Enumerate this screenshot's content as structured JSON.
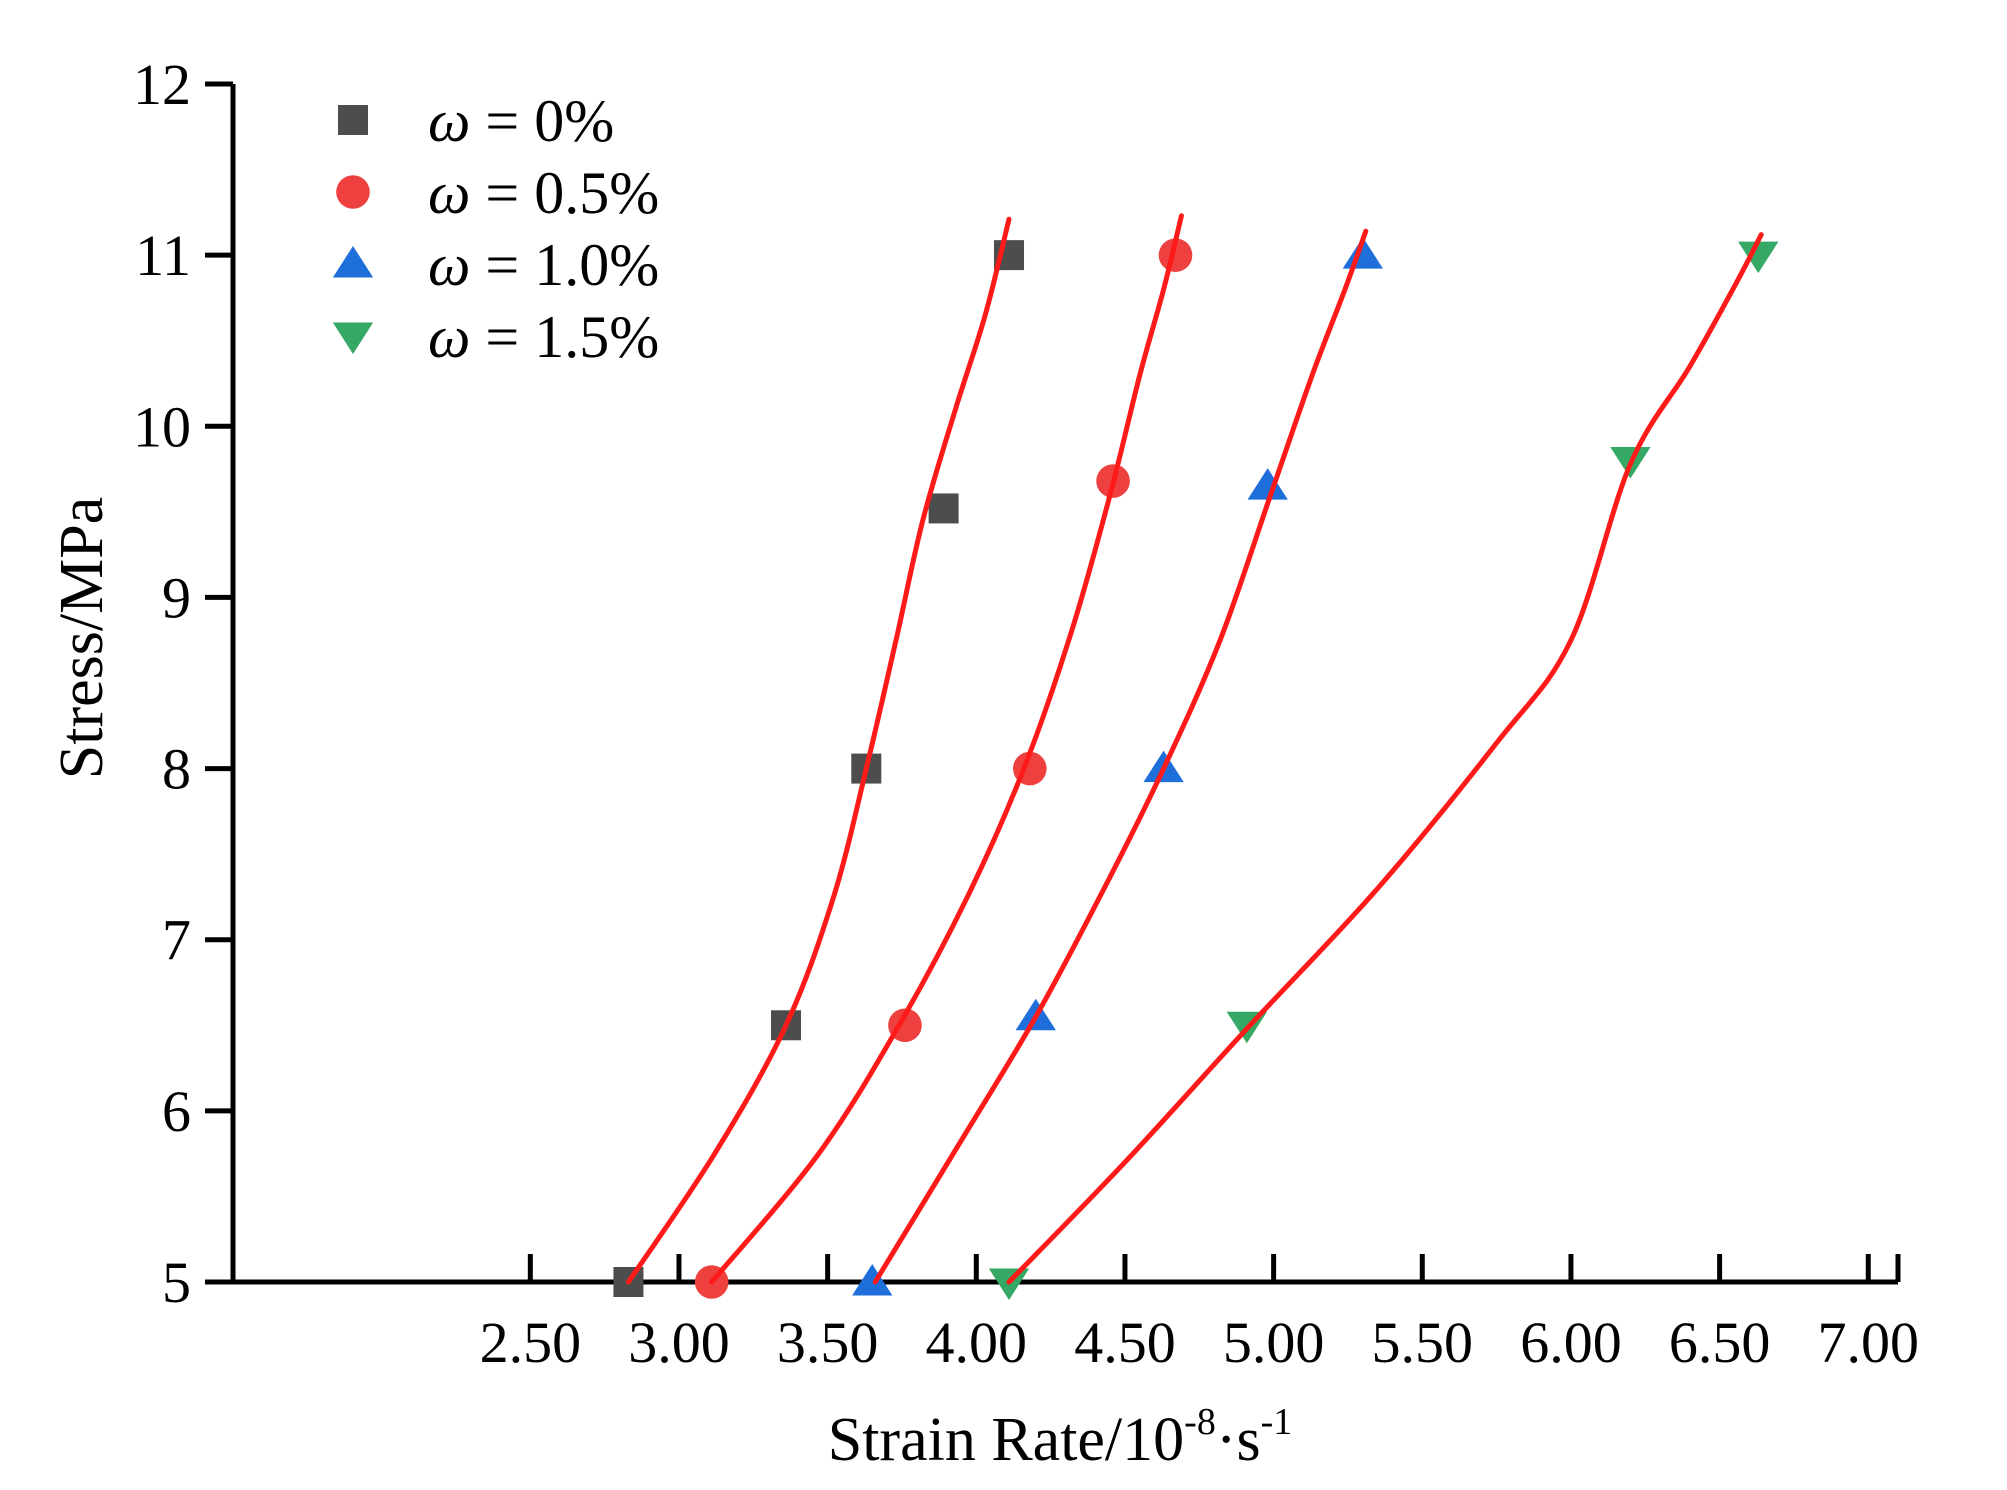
{
  "chart_data": {
    "type": "scatter",
    "xlabel": "Strain Rate/10",
    "xlabel_sup1": "-8",
    "xlabel_mid": "·s",
    "xlabel_sup2": "-1",
    "ylabel": "Stress/MPa",
    "xlim": [
      1.5,
      7.1
    ],
    "ylim": [
      5,
      12
    ],
    "x_tick_values": [
      2.5,
      3.0,
      3.5,
      4.0,
      4.5,
      5.0,
      5.5,
      6.0,
      6.5,
      7.0
    ],
    "x_tick_labels": [
      "2.50",
      "3.00",
      "3.50",
      "4.00",
      "4.50",
      "5.00",
      "5.50",
      "6.00",
      "6.50",
      "7.00"
    ],
    "y_tick_values": [
      5,
      6,
      7,
      8,
      9,
      10,
      11,
      12
    ],
    "y_tick_labels": [
      "5",
      "6",
      "7",
      "8",
      "9",
      "10",
      "11",
      "12"
    ],
    "legend_position": "top-left",
    "fit_color": "#ff1a1a",
    "series": [
      {
        "symbol": "ω",
        "value_text": " = 0%",
        "marker": "square",
        "color": "#4d4d4d",
        "points": [
          [
            2.83,
            5.0
          ],
          [
            3.36,
            6.5
          ],
          [
            3.63,
            8.0
          ],
          [
            3.89,
            9.52
          ],
          [
            4.11,
            11.0
          ]
        ],
        "fit": [
          [
            2.83,
            5.0
          ],
          [
            3.12,
            5.75
          ],
          [
            3.36,
            6.5
          ],
          [
            3.52,
            7.25
          ],
          [
            3.63,
            8.0
          ],
          [
            3.73,
            8.75
          ],
          [
            3.82,
            9.45
          ],
          [
            3.93,
            10.1
          ],
          [
            4.03,
            10.65
          ],
          [
            4.11,
            11.21
          ]
        ]
      },
      {
        "symbol": "ω",
        "value_text": " = 0.5%",
        "marker": "circle",
        "color": "#ef4040",
        "points": [
          [
            3.11,
            5.0
          ],
          [
            3.76,
            6.5
          ],
          [
            4.18,
            8.0
          ],
          [
            4.46,
            9.68
          ],
          [
            4.67,
            11.0
          ]
        ],
        "fit": [
          [
            3.11,
            5.0
          ],
          [
            3.47,
            5.75
          ],
          [
            3.74,
            6.5
          ],
          [
            3.97,
            7.25
          ],
          [
            4.16,
            8.0
          ],
          [
            4.32,
            8.8
          ],
          [
            4.45,
            9.6
          ],
          [
            4.55,
            10.3
          ],
          [
            4.63,
            10.8
          ],
          [
            4.69,
            11.23
          ]
        ]
      },
      {
        "symbol": "ω",
        "value_text": " = 1.0%",
        "marker": "triangle-up",
        "color": "#1f6fdb",
        "points": [
          [
            3.65,
            5.0
          ],
          [
            4.2,
            6.55
          ],
          [
            4.63,
            8.0
          ],
          [
            4.98,
            9.65
          ],
          [
            5.3,
            11.0
          ]
        ],
        "fit": [
          [
            3.66,
            5.0
          ],
          [
            3.94,
            5.8
          ],
          [
            4.2,
            6.55
          ],
          [
            4.43,
            7.3
          ],
          [
            4.63,
            8.0
          ],
          [
            4.82,
            8.75
          ],
          [
            4.99,
            9.6
          ],
          [
            5.13,
            10.3
          ],
          [
            5.24,
            10.8
          ],
          [
            5.31,
            11.14
          ]
        ]
      },
      {
        "symbol": "ω",
        "value_text": " = 1.5%",
        "marker": "triangle-down",
        "color": "#35a865",
        "points": [
          [
            4.11,
            5.0
          ],
          [
            4.91,
            6.5
          ],
          [
            6.2,
            9.8
          ],
          [
            6.63,
            11.0
          ]
        ],
        "fit": [
          [
            4.11,
            5.0
          ],
          [
            4.5,
            5.7
          ],
          [
            4.91,
            6.48
          ],
          [
            5.35,
            7.3
          ],
          [
            5.75,
            8.15
          ],
          [
            6.0,
            8.75
          ],
          [
            6.2,
            9.78
          ],
          [
            6.4,
            10.35
          ],
          [
            6.56,
            10.85
          ],
          [
            6.64,
            11.12
          ]
        ]
      }
    ]
  }
}
